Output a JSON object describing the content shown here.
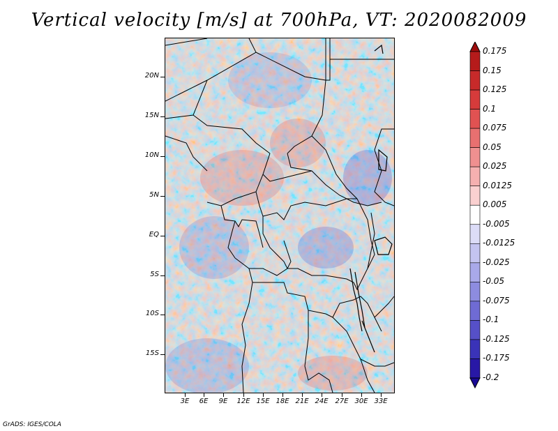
{
  "title": "Vertical velocity [m/s] at 700hPa, VT: 2020082009",
  "footer": "GrADS: IGES/COLA",
  "map": {
    "lat_labels": [
      "20N",
      "15N",
      "10N",
      "5N",
      "EQ",
      "5S",
      "10S",
      "15S"
    ],
    "lon_labels": [
      "3E",
      "6E",
      "9E",
      "12E",
      "15E",
      "18E",
      "21E",
      "24E",
      "27E",
      "30E",
      "33E"
    ]
  },
  "colorbar": {
    "labels": [
      "0.175",
      "0.15",
      "0.125",
      "0.1",
      "0.075",
      "0.05",
      "0.025",
      "0.0125",
      "0.005",
      "-0.005",
      "-0.0125",
      "-0.025",
      "-0.05",
      "-0.075",
      "-0.1",
      "-0.125",
      "-0.175",
      "-0.2"
    ],
    "colors": [
      "#9e0d0d",
      "#b51b1b",
      "#c72a2a",
      "#d63b3b",
      "#e05252",
      "#e87070",
      "#ef9090",
      "#f5b0b0",
      "#fad0d0",
      "#ffffff",
      "#dcdcf7",
      "#c4c4f0",
      "#a9a9e9",
      "#8d8ce0",
      "#6f6bd4",
      "#5650c8",
      "#3a33b8",
      "#2818a6",
      "#1a0a96"
    ]
  }
}
